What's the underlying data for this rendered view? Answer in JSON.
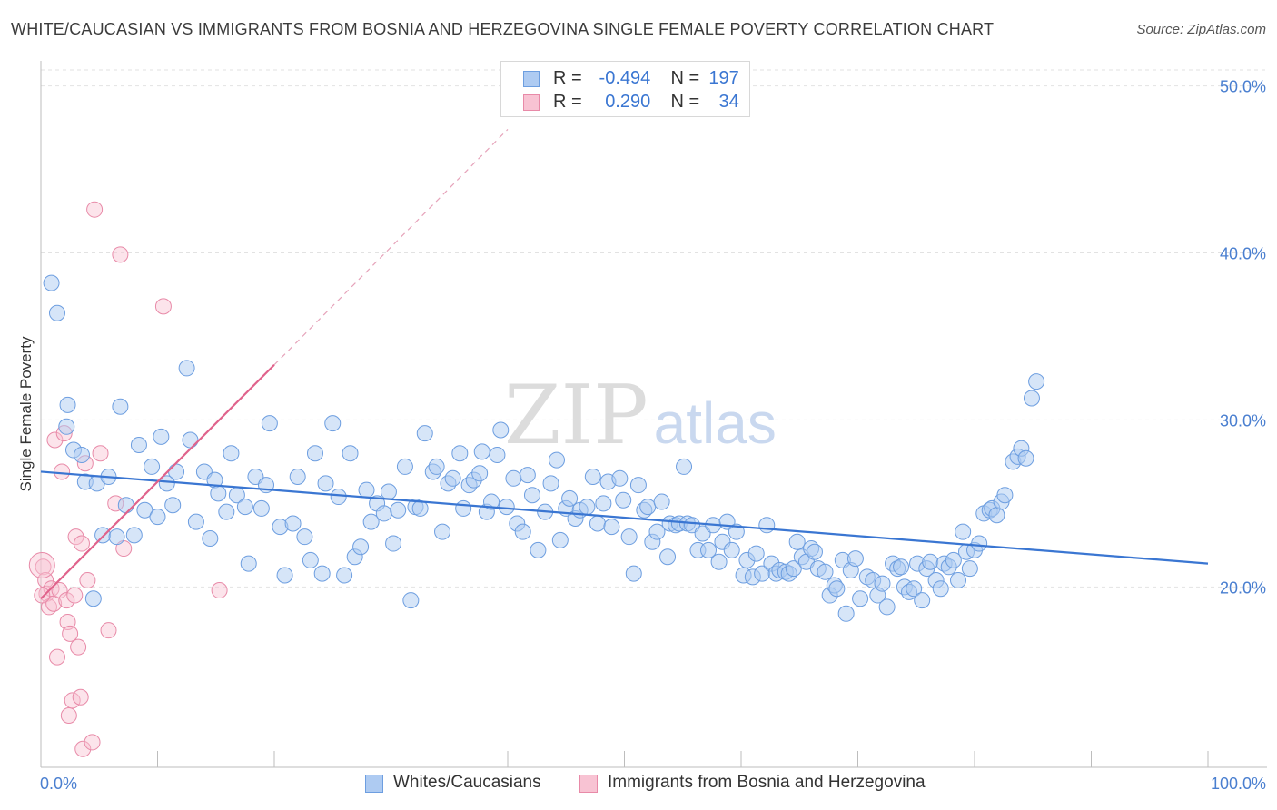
{
  "title": "WHITE/CAUCASIAN VS IMMIGRANTS FROM BOSNIA AND HERZEGOVINA SINGLE FEMALE POVERTY CORRELATION CHART",
  "source": "Source: ZipAtlas.com",
  "watermark": {
    "zip": "ZIP",
    "atlas": "atlas"
  },
  "legend": {
    "r_label": "R =",
    "n_label": "N =",
    "rows": [
      {
        "r": "-0.494",
        "n": "197",
        "color": "#aecbf2",
        "border": "#6d9ee0"
      },
      {
        "r": "0.290",
        "n": "34",
        "color": "#f8c3d3",
        "border": "#e88aa8"
      }
    ]
  },
  "bottom_legend": [
    "Whites/Caucasians",
    "Immigrants from Bosnia and Herzegovina"
  ],
  "chart_data": {
    "type": "scatter",
    "title": "WHITE/CAUCASIAN VS IMMIGRANTS FROM BOSNIA AND HERZEGOVINA SINGLE FEMALE POVERTY CORRELATION CHART",
    "ylabel": "Single Female Poverty",
    "xlabel": "",
    "xlim": [
      0,
      100
    ],
    "ylim": [
      9.2,
      51.5
    ],
    "x_tick_labels": [
      "0.0%",
      "100.0%"
    ],
    "y_ticks": [
      20,
      30,
      40,
      50
    ],
    "y_tick_labels": [
      "20.0%",
      "30.0%",
      "40.0%",
      "50.0%"
    ],
    "grid": true,
    "series": [
      {
        "name": "Whites/Caucasians",
        "color": "#aecbf2",
        "stroke": "#6d9ee0",
        "trend": {
          "x": [
            0,
            100
          ],
          "y": [
            26.9,
            21.4
          ],
          "color": "#3a76d2"
        },
        "points": [
          [
            0.9,
            38.2
          ],
          [
            1.4,
            36.4
          ],
          [
            2.2,
            29.6
          ],
          [
            2.3,
            30.9
          ],
          [
            2.8,
            28.2
          ],
          [
            3.5,
            27.9
          ],
          [
            3.8,
            26.3
          ],
          [
            4.5,
            19.3
          ],
          [
            4.8,
            26.2
          ],
          [
            5.3,
            23.1
          ],
          [
            5.8,
            26.6
          ],
          [
            6.5,
            23.0
          ],
          [
            6.8,
            30.8
          ],
          [
            7.3,
            24.9
          ],
          [
            8.0,
            23.1
          ],
          [
            8.4,
            28.5
          ],
          [
            8.9,
            24.6
          ],
          [
            9.5,
            27.2
          ],
          [
            10.0,
            24.2
          ],
          [
            10.3,
            29.0
          ],
          [
            10.8,
            26.2
          ],
          [
            11.3,
            24.9
          ],
          [
            11.6,
            26.9
          ],
          [
            12.5,
            33.1
          ],
          [
            12.8,
            28.8
          ],
          [
            13.3,
            23.9
          ],
          [
            14.0,
            26.9
          ],
          [
            14.5,
            22.9
          ],
          [
            14.9,
            26.4
          ],
          [
            15.2,
            25.6
          ],
          [
            15.9,
            24.5
          ],
          [
            16.3,
            28.0
          ],
          [
            16.8,
            25.5
          ],
          [
            17.5,
            24.8
          ],
          [
            17.8,
            21.4
          ],
          [
            18.4,
            26.6
          ],
          [
            18.9,
            24.7
          ],
          [
            19.3,
            26.1
          ],
          [
            19.6,
            29.8
          ],
          [
            20.5,
            23.6
          ],
          [
            20.9,
            20.7
          ],
          [
            21.6,
            23.8
          ],
          [
            22.0,
            26.6
          ],
          [
            22.6,
            23.0
          ],
          [
            23.1,
            21.6
          ],
          [
            23.5,
            28.0
          ],
          [
            24.1,
            20.8
          ],
          [
            24.4,
            26.2
          ],
          [
            25.0,
            29.8
          ],
          [
            25.5,
            25.4
          ],
          [
            26.0,
            20.7
          ],
          [
            26.5,
            28.0
          ],
          [
            26.9,
            21.8
          ],
          [
            27.4,
            22.4
          ],
          [
            27.9,
            25.8
          ],
          [
            28.3,
            23.9
          ],
          [
            28.8,
            25.0
          ],
          [
            29.4,
            24.4
          ],
          [
            29.8,
            25.7
          ],
          [
            30.2,
            22.6
          ],
          [
            30.6,
            24.6
          ],
          [
            31.2,
            27.2
          ],
          [
            31.7,
            19.2
          ],
          [
            32.1,
            24.8
          ],
          [
            32.5,
            24.7
          ],
          [
            32.9,
            29.2
          ],
          [
            33.6,
            26.9
          ],
          [
            33.9,
            27.2
          ],
          [
            34.4,
            23.3
          ],
          [
            34.9,
            26.2
          ],
          [
            35.3,
            26.5
          ],
          [
            35.9,
            28.0
          ],
          [
            36.2,
            24.7
          ],
          [
            36.7,
            26.1
          ],
          [
            37.1,
            26.4
          ],
          [
            37.6,
            26.8
          ],
          [
            37.8,
            28.1
          ],
          [
            38.2,
            24.5
          ],
          [
            38.6,
            25.1
          ],
          [
            39.1,
            27.9
          ],
          [
            39.4,
            29.4
          ],
          [
            39.9,
            24.8
          ],
          [
            40.5,
            26.5
          ],
          [
            40.8,
            23.8
          ],
          [
            41.3,
            23.3
          ],
          [
            41.7,
            26.7
          ],
          [
            42.1,
            25.5
          ],
          [
            42.6,
            22.2
          ],
          [
            43.2,
            24.5
          ],
          [
            43.7,
            26.2
          ],
          [
            44.2,
            27.6
          ],
          [
            44.5,
            22.8
          ],
          [
            45.0,
            24.7
          ],
          [
            45.3,
            25.3
          ],
          [
            45.8,
            24.1
          ],
          [
            46.2,
            24.6
          ],
          [
            46.8,
            24.8
          ],
          [
            47.3,
            26.6
          ],
          [
            47.7,
            23.8
          ],
          [
            48.2,
            25.0
          ],
          [
            48.6,
            26.3
          ],
          [
            48.9,
            23.6
          ],
          [
            49.6,
            26.5
          ],
          [
            49.9,
            25.2
          ],
          [
            50.4,
            23.0
          ],
          [
            50.8,
            20.8
          ],
          [
            51.2,
            26.1
          ],
          [
            51.7,
            24.6
          ],
          [
            52.0,
            24.8
          ],
          [
            52.4,
            22.7
          ],
          [
            52.8,
            23.3
          ],
          [
            53.2,
            25.1
          ],
          [
            53.7,
            21.8
          ],
          [
            53.9,
            23.8
          ],
          [
            54.4,
            23.7
          ],
          [
            54.7,
            23.8
          ],
          [
            55.1,
            27.2
          ],
          [
            55.4,
            23.8
          ],
          [
            55.8,
            23.7
          ],
          [
            56.3,
            22.2
          ],
          [
            56.7,
            23.2
          ],
          [
            57.2,
            22.2
          ],
          [
            57.6,
            23.7
          ],
          [
            58.1,
            21.5
          ],
          [
            58.4,
            22.7
          ],
          [
            58.8,
            23.9
          ],
          [
            59.2,
            22.2
          ],
          [
            59.6,
            23.3
          ],
          [
            60.2,
            20.7
          ],
          [
            60.5,
            21.6
          ],
          [
            61.0,
            20.6
          ],
          [
            61.3,
            22.0
          ],
          [
            61.8,
            20.8
          ],
          [
            62.2,
            23.7
          ],
          [
            62.6,
            21.4
          ],
          [
            63.0,
            20.8
          ],
          [
            63.3,
            21.0
          ],
          [
            63.8,
            20.9
          ],
          [
            64.1,
            20.8
          ],
          [
            64.5,
            21.1
          ],
          [
            64.8,
            22.7
          ],
          [
            65.2,
            21.8
          ],
          [
            65.6,
            21.5
          ],
          [
            66.0,
            22.3
          ],
          [
            66.3,
            22.1
          ],
          [
            66.6,
            21.1
          ],
          [
            67.2,
            20.9
          ],
          [
            67.6,
            19.5
          ],
          [
            68.0,
            20.1
          ],
          [
            68.2,
            19.9
          ],
          [
            68.7,
            21.6
          ],
          [
            69.0,
            18.4
          ],
          [
            69.4,
            21.0
          ],
          [
            69.8,
            21.7
          ],
          [
            70.2,
            19.3
          ],
          [
            70.8,
            20.6
          ],
          [
            71.3,
            20.4
          ],
          [
            71.7,
            19.5
          ],
          [
            72.1,
            20.2
          ],
          [
            72.5,
            18.8
          ],
          [
            73.0,
            21.4
          ],
          [
            73.4,
            21.1
          ],
          [
            73.7,
            21.2
          ],
          [
            74.0,
            20.0
          ],
          [
            74.4,
            19.7
          ],
          [
            74.8,
            19.9
          ],
          [
            75.1,
            21.4
          ],
          [
            75.5,
            19.2
          ],
          [
            75.9,
            21.1
          ],
          [
            76.2,
            21.5
          ],
          [
            76.7,
            20.4
          ],
          [
            77.1,
            19.9
          ],
          [
            77.4,
            21.4
          ],
          [
            77.8,
            21.2
          ],
          [
            78.2,
            21.6
          ],
          [
            78.6,
            20.4
          ],
          [
            79.0,
            23.3
          ],
          [
            79.3,
            22.1
          ],
          [
            79.6,
            21.1
          ],
          [
            80.0,
            22.2
          ],
          [
            80.4,
            22.6
          ],
          [
            80.8,
            24.4
          ],
          [
            81.3,
            24.6
          ],
          [
            81.5,
            24.7
          ],
          [
            81.9,
            24.3
          ],
          [
            82.3,
            25.1
          ],
          [
            82.6,
            25.5
          ],
          [
            83.3,
            27.5
          ],
          [
            83.7,
            27.8
          ],
          [
            84.0,
            28.3
          ],
          [
            84.4,
            27.7
          ],
          [
            84.9,
            31.3
          ],
          [
            85.3,
            32.3
          ]
        ]
      },
      {
        "name": "Immigrants from Bosnia and Herzegovina",
        "color": "#f8c3d3",
        "stroke": "#e88aa8",
        "trend": {
          "x": [
            0,
            20
          ],
          "y": [
            19.3,
            33.3
          ],
          "color": "#e0638c",
          "dashed_to": {
            "x": 40,
            "y": 47.4
          }
        },
        "points": [
          [
            0.2,
            21.2
          ],
          [
            0.4,
            20.4
          ],
          [
            0.5,
            19.6
          ],
          [
            0.7,
            18.8
          ],
          [
            0.9,
            19.9
          ],
          [
            1.1,
            19.0
          ],
          [
            1.2,
            28.8
          ],
          [
            1.4,
            15.8
          ],
          [
            1.6,
            19.8
          ],
          [
            1.8,
            26.9
          ],
          [
            2.0,
            29.2
          ],
          [
            2.2,
            19.2
          ],
          [
            2.3,
            17.9
          ],
          [
            2.4,
            12.3
          ],
          [
            2.5,
            17.2
          ],
          [
            2.7,
            13.2
          ],
          [
            2.9,
            19.5
          ],
          [
            3.0,
            23.0
          ],
          [
            3.2,
            16.4
          ],
          [
            3.4,
            13.4
          ],
          [
            3.5,
            22.6
          ],
          [
            3.6,
            10.3
          ],
          [
            3.8,
            27.4
          ],
          [
            4.0,
            20.4
          ],
          [
            4.4,
            10.7
          ],
          [
            4.6,
            42.6
          ],
          [
            5.1,
            28.0
          ],
          [
            5.8,
            17.4
          ],
          [
            6.4,
            25.0
          ],
          [
            6.8,
            39.9
          ],
          [
            7.1,
            22.3
          ],
          [
            10.5,
            36.8
          ],
          [
            15.3,
            19.8
          ],
          [
            0.1,
            19.5
          ]
        ]
      }
    ]
  }
}
